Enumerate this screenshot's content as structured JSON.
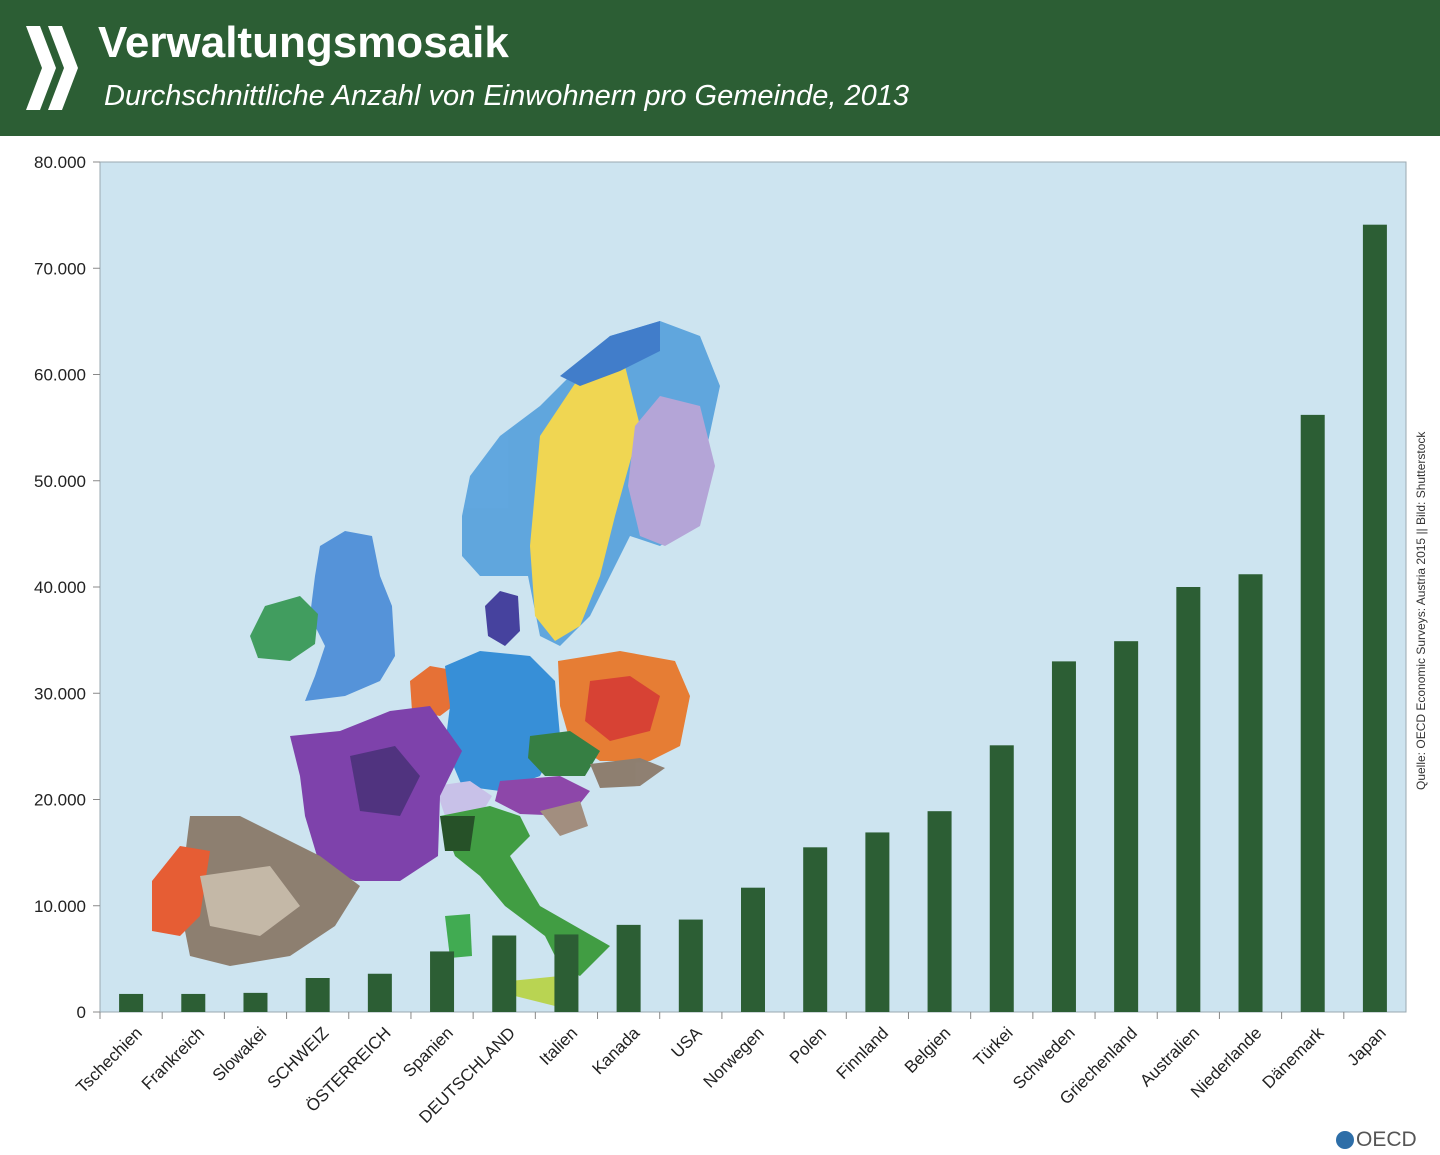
{
  "header": {
    "title": "Verwaltungsmosaik",
    "subtitle": "Durchschnittliche Anzahl von Einwohnern pro Gemeinde, 2013",
    "logo_icon": "oecd-chevrons-icon"
  },
  "colors": {
    "header_bg": "#2c5e34",
    "bar": "#2c5e34",
    "plot_bg": "#cde4f0"
  },
  "source": "Quelle: OECD Economic Surveys: Austria 2015 || Bild: Shutterstock",
  "footer": {
    "brand": "OECD"
  },
  "chart_data": {
    "type": "bar",
    "categories": [
      "Tschechien",
      "Frankreich",
      "Slowakei",
      "SCHWEIZ",
      "ÖSTERREICH",
      "Spanien",
      "DEUTSCHLAND",
      "Italien",
      "Kanada",
      "USA",
      "Norwegen",
      "Polen",
      "Finnland",
      "Belgien",
      "Türkei",
      "Schweden",
      "Griechenland",
      "Australien",
      "Niederlande",
      "Dänemark",
      "Japan"
    ],
    "values": [
      1700,
      1700,
      1800,
      3200,
      3600,
      5700,
      7200,
      7300,
      8200,
      8700,
      11700,
      15500,
      16900,
      18900,
      25100,
      33000,
      34900,
      40000,
      41200,
      56200,
      74100
    ],
    "ylim": [
      0,
      80000
    ],
    "yticks": [
      "0",
      "10.000",
      "20.000",
      "30.000",
      "40.000",
      "50.000",
      "60.000",
      "70.000",
      "80.000"
    ],
    "ytick_values": [
      0,
      10000,
      20000,
      30000,
      40000,
      50000,
      60000,
      70000,
      80000
    ],
    "grid": false,
    "background_image": "europe-municipality-map"
  }
}
